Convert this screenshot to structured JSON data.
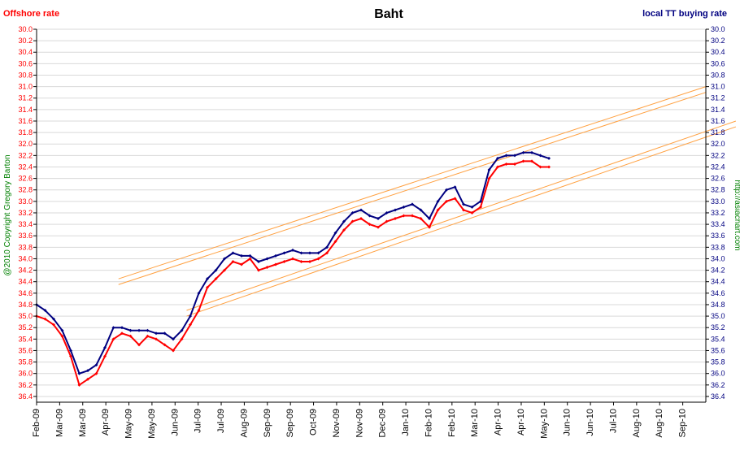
{
  "chart_data": {
    "type": "line",
    "title": "Baht",
    "left_label": "Offshore rate",
    "right_label": "local TT buying rate",
    "copyright": "@2010 Copyright Gregory Barton",
    "website": "http://asiachart.com",
    "ylim": [
      30.0,
      36.5
    ],
    "y_reversed": true,
    "y_ticks": [
      "30.0",
      "30.2",
      "30.4",
      "30.6",
      "30.8",
      "31.0",
      "31.2",
      "31.4",
      "31.6",
      "31.8",
      "32.0",
      "32.2",
      "32.4",
      "32.6",
      "32.8",
      "33.0",
      "33.2",
      "33.4",
      "33.6",
      "33.8",
      "34.0",
      "34.2",
      "34.4",
      "34.6",
      "34.8",
      "35.0",
      "35.2",
      "35.4",
      "35.6",
      "35.8",
      "36.0",
      "36.2",
      "36.4"
    ],
    "x_ticks": [
      "Feb-09",
      "Mar-09",
      "Mar-09",
      "Apr-09",
      "May-09",
      "May-09",
      "Jun-09",
      "Jul-09",
      "Jul-09",
      "Aug-09",
      "Sep-09",
      "Sep-09",
      "Oct-09",
      "Nov-09",
      "Nov-09",
      "Dec-09",
      "Jan-10",
      "Feb-10",
      "Feb-10",
      "Mar-10",
      "Apr-10",
      "Apr-10",
      "May-10",
      "Jun-10",
      "Jun-10",
      "Jul-10",
      "Aug-10",
      "Aug-10",
      "Sep-10"
    ],
    "colors": {
      "offshore": "#ff0000",
      "local": "#000080",
      "trend": "#ffa040",
      "left_axis": "#ff0000",
      "right_axis": "#000080",
      "copyright": "#008000"
    },
    "series": [
      {
        "name": "Offshore rate",
        "points": [
          [
            0,
            35.0
          ],
          [
            1,
            35.05
          ],
          [
            2,
            35.15
          ],
          [
            3,
            35.35
          ],
          [
            4,
            35.7
          ],
          [
            5,
            36.2
          ],
          [
            6,
            36.1
          ],
          [
            7,
            36.0
          ],
          [
            8,
            35.7
          ],
          [
            9,
            35.4
          ],
          [
            10,
            35.3
          ],
          [
            11,
            35.35
          ],
          [
            12,
            35.5
          ],
          [
            13,
            35.35
          ],
          [
            14,
            35.4
          ],
          [
            15,
            35.5
          ],
          [
            16,
            35.6
          ],
          [
            17,
            35.4
          ],
          [
            18,
            35.15
          ],
          [
            19,
            34.9
          ],
          [
            20,
            34.5
          ],
          [
            21,
            34.35
          ],
          [
            22,
            34.2
          ],
          [
            23,
            34.05
          ],
          [
            24,
            34.1
          ],
          [
            25,
            34.0
          ],
          [
            26,
            34.2
          ],
          [
            27,
            34.15
          ],
          [
            28,
            34.1
          ],
          [
            29,
            34.05
          ],
          [
            30,
            34.0
          ],
          [
            31,
            34.05
          ],
          [
            32,
            34.05
          ],
          [
            33,
            34.0
          ],
          [
            34,
            33.9
          ],
          [
            35,
            33.7
          ],
          [
            36,
            33.5
          ],
          [
            37,
            33.35
          ],
          [
            38,
            33.3
          ],
          [
            39,
            33.4
          ],
          [
            40,
            33.45
          ],
          [
            41,
            33.35
          ],
          [
            42,
            33.3
          ],
          [
            43,
            33.25
          ],
          [
            44,
            33.25
          ],
          [
            45,
            33.3
          ],
          [
            46,
            33.45
          ],
          [
            47,
            33.15
          ],
          [
            48,
            33.0
          ],
          [
            49,
            32.95
          ],
          [
            50,
            33.15
          ],
          [
            51,
            33.2
          ],
          [
            52,
            33.1
          ],
          [
            53,
            32.6
          ],
          [
            54,
            32.4
          ],
          [
            55,
            32.35
          ],
          [
            56,
            32.35
          ],
          [
            57,
            32.3
          ],
          [
            58,
            32.3
          ],
          [
            59,
            32.4
          ],
          [
            60,
            32.4
          ]
        ]
      },
      {
        "name": "local TT buying rate",
        "points": [
          [
            0,
            34.8
          ],
          [
            1,
            34.9
          ],
          [
            2,
            35.05
          ],
          [
            3,
            35.25
          ],
          [
            4,
            35.6
          ],
          [
            5,
            36.0
          ],
          [
            6,
            35.95
          ],
          [
            7,
            35.85
          ],
          [
            8,
            35.55
          ],
          [
            9,
            35.2
          ],
          [
            10,
            35.2
          ],
          [
            11,
            35.25
          ],
          [
            12,
            35.25
          ],
          [
            13,
            35.25
          ],
          [
            14,
            35.3
          ],
          [
            15,
            35.3
          ],
          [
            16,
            35.4
          ],
          [
            17,
            35.25
          ],
          [
            18,
            35.0
          ],
          [
            19,
            34.6
          ],
          [
            20,
            34.35
          ],
          [
            21,
            34.2
          ],
          [
            22,
            34.0
          ],
          [
            23,
            33.9
          ],
          [
            24,
            33.95
          ],
          [
            25,
            33.95
          ],
          [
            26,
            34.05
          ],
          [
            27,
            34.0
          ],
          [
            28,
            33.95
          ],
          [
            29,
            33.9
          ],
          [
            30,
            33.85
          ],
          [
            31,
            33.9
          ],
          [
            32,
            33.9
          ],
          [
            33,
            33.9
          ],
          [
            34,
            33.8
          ],
          [
            35,
            33.55
          ],
          [
            36,
            33.35
          ],
          [
            37,
            33.2
          ],
          [
            38,
            33.15
          ],
          [
            39,
            33.25
          ],
          [
            40,
            33.3
          ],
          [
            41,
            33.2
          ],
          [
            42,
            33.15
          ],
          [
            43,
            33.1
          ],
          [
            44,
            33.05
          ],
          [
            45,
            33.15
          ],
          [
            46,
            33.3
          ],
          [
            47,
            33.0
          ],
          [
            48,
            32.8
          ],
          [
            49,
            32.75
          ],
          [
            50,
            33.05
          ],
          [
            51,
            33.1
          ],
          [
            52,
            33.0
          ],
          [
            53,
            32.45
          ],
          [
            54,
            32.25
          ],
          [
            55,
            32.2
          ],
          [
            56,
            32.2
          ],
          [
            57,
            32.15
          ],
          [
            58,
            32.15
          ],
          [
            59,
            32.2
          ],
          [
            60,
            32.25
          ]
        ]
      }
    ],
    "trend_lines": [
      [
        [
          3.55,
          34.35
        ],
        [
          29,
          31.0
        ]
      ],
      [
        [
          3.55,
          34.45
        ],
        [
          29,
          31.1
        ]
      ],
      [
        [
          6.5,
          34.9
        ],
        [
          30.3,
          31.6
        ]
      ],
      [
        [
          6.5,
          35.0
        ],
        [
          30.3,
          31.7
        ]
      ]
    ],
    "grid": true
  }
}
